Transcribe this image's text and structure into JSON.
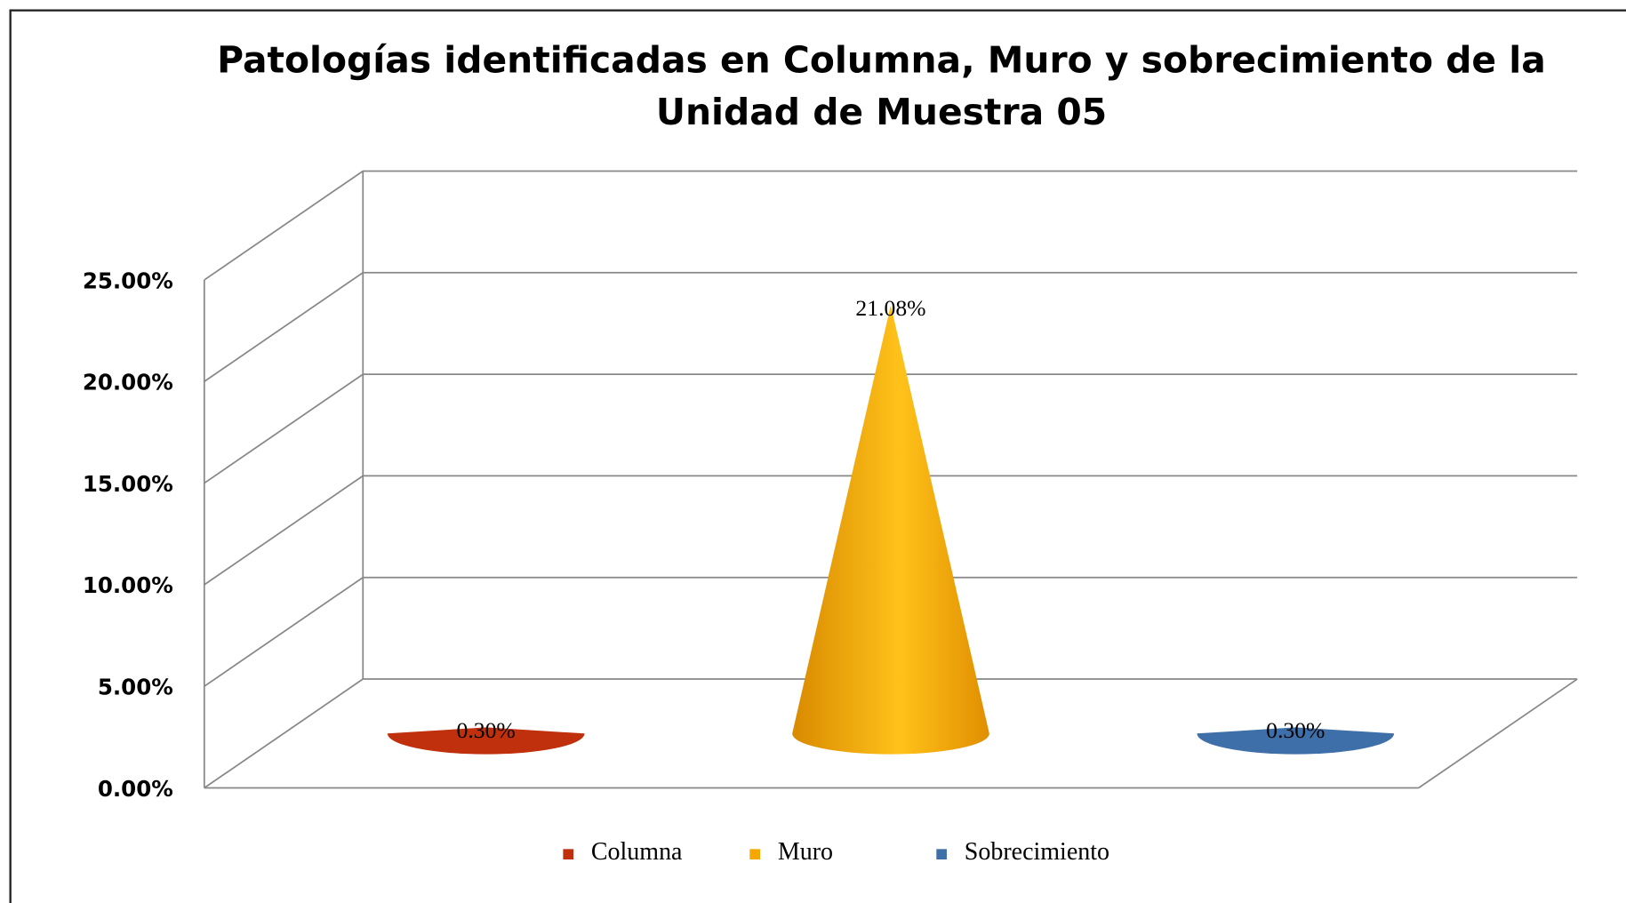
{
  "chart_data": {
    "type": "cone",
    "title": [
      "Patologías  identificadas en Columna, Muro y sobrecimiento de la",
      "Unidad  de Muestra  05"
    ],
    "series": [
      {
        "name": "Columna",
        "color": "#c0300c",
        "values": [
          0.3
        ],
        "value_labels": [
          "0.30%"
        ]
      },
      {
        "name": "Muro",
        "color": "#f7a800",
        "values": [
          21.08
        ],
        "value_labels": [
          "21.08%"
        ]
      },
      {
        "name": "Sobrecimiento",
        "color": "#3f6fa8",
        "values": [
          0.3
        ],
        "value_labels": [
          "0.30%"
        ]
      }
    ],
    "ylim": [
      0,
      25
    ],
    "yticks": [
      {
        "value": 0,
        "label": "0.00%"
      },
      {
        "value": 5,
        "label": "5.00%"
      },
      {
        "value": 10,
        "label": "10.00%"
      },
      {
        "value": 15,
        "label": "15.00%"
      },
      {
        "value": 20,
        "label": "20.00%"
      },
      {
        "value": 25,
        "label": "25.00%"
      }
    ],
    "grid": true,
    "legend": "bottom"
  }
}
